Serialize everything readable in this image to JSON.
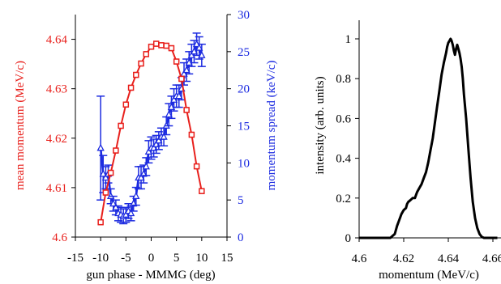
{
  "chart_data": [
    {
      "type": "line",
      "xlabel": "gun phase - MMMG (deg)",
      "ylabel": "mean momentum (MeV/c)",
      "y2label": "momentum spread (keV/c)",
      "xlim": [
        -15,
        15
      ],
      "ylim": [
        4.6,
        4.645
      ],
      "y2lim": [
        0,
        30
      ],
      "xticks": [
        "-15",
        "-10",
        "-5",
        "0",
        "5",
        "10",
        "15"
      ],
      "yticks": [
        "4.6",
        "4.61",
        "4.62",
        "4.63",
        "4.64"
      ],
      "y2ticks": [
        "0",
        "5",
        "10",
        "15",
        "20",
        "25",
        "30"
      ],
      "series": [
        {
          "axis": "left",
          "color": "#e8201c",
          "marker": "square",
          "x": [
            -10,
            -9,
            -8,
            -7,
            -6,
            -5,
            -4,
            -3,
            -2,
            -1,
            0,
            1,
            2,
            3,
            4,
            5,
            6,
            7,
            8,
            9,
            10
          ],
          "y": [
            4.603,
            4.609,
            4.613,
            4.6175,
            4.6225,
            4.6268,
            4.6302,
            4.6328,
            4.6351,
            4.637,
            4.6385,
            4.6391,
            4.6388,
            4.6387,
            4.6382,
            4.6355,
            4.632,
            4.6257,
            4.6207,
            4.6143,
            4.6093
          ],
          "yerr": [
            0.0005,
            0.0005,
            0.0005,
            0.0005,
            0.0005,
            0.0005,
            0.0005,
            0.0005,
            0.0005,
            0.0005,
            0.0005,
            0.0005,
            0.0005,
            0.0005,
            0.0005,
            0.0005,
            0.0005,
            0.0005,
            0.0005,
            0.0005,
            0.0005
          ]
        },
        {
          "axis": "right",
          "color": "#1c2be0",
          "marker": "triangle",
          "x": [
            -10,
            -9.5,
            -9,
            -8.5,
            -8,
            -7.5,
            -7,
            -6.5,
            -6,
            -5.5,
            -5,
            -4.5,
            -4,
            -3.5,
            -3,
            -2.5,
            -2,
            -1.5,
            -1,
            -0.5,
            0,
            0.5,
            1,
            1.5,
            2,
            2.5,
            3,
            3.5,
            4,
            4.5,
            5,
            5.5,
            6,
            6.5,
            7,
            7.5,
            8,
            8.5,
            9,
            9.5,
            10
          ],
          "y": [
            12.0,
            8.5,
            8.0,
            8.5,
            5.5,
            4.5,
            4.0,
            3.2,
            3.0,
            2.8,
            3.0,
            3.5,
            3.2,
            4.5,
            5.5,
            8.0,
            8.0,
            8.5,
            9.5,
            11.5,
            12.0,
            12.0,
            12.5,
            13.0,
            13.5,
            13.5,
            15.0,
            16.5,
            17.5,
            18.5,
            19.0,
            19.0,
            20.0,
            22.0,
            22.5,
            23.5,
            24.5,
            25.0,
            26.0,
            25.5,
            24.5
          ],
          "yerr": [
            7.0,
            2.5,
            1.5,
            1.2,
            1.0,
            1.0,
            1.0,
            1.0,
            1.0,
            1.0,
            1.0,
            1.0,
            1.0,
            1.0,
            1.2,
            1.5,
            1.5,
            1.2,
            1.2,
            1.5,
            1.5,
            1.2,
            1.2,
            1.2,
            1.2,
            1.2,
            1.2,
            1.5,
            1.5,
            1.5,
            1.5,
            1.5,
            1.5,
            1.5,
            1.5,
            1.5,
            1.5,
            1.5,
            1.5,
            1.5,
            1.5
          ]
        }
      ]
    },
    {
      "type": "line",
      "xlabel": "momentum (MeV/c)",
      "ylabel": "intensity (arb. units)",
      "xlim": [
        4.6,
        4.66
      ],
      "ylim": [
        0,
        1
      ],
      "xticks": [
        "4.6",
        "4.62",
        "4.64",
        "4.66"
      ],
      "yticks": [
        "0",
        "0.2",
        "0.4",
        "0.6",
        "0.8",
        "1"
      ],
      "series": [
        {
          "color": "#000000",
          "x": [
            4.6,
            4.605,
            4.61,
            4.614,
            4.616,
            4.617,
            4.618,
            4.619,
            4.62,
            4.621,
            4.6215,
            4.622,
            4.623,
            4.624,
            4.625,
            4.626,
            4.627,
            4.628,
            4.629,
            4.63,
            4.631,
            4.632,
            4.633,
            4.634,
            4.635,
            4.636,
            4.637,
            4.638,
            4.639,
            4.6395,
            4.64,
            4.6405,
            4.641,
            4.6415,
            4.642,
            4.6425,
            4.643,
            4.6435,
            4.644,
            4.6445,
            4.645,
            4.6455,
            4.646,
            4.6465,
            4.647,
            4.648,
            4.649,
            4.65,
            4.651,
            4.652,
            4.653,
            4.654,
            4.655,
            4.656,
            4.658,
            4.66,
            4.662
          ],
          "y": [
            0.0,
            0.0,
            0.0,
            0.0,
            0.02,
            0.06,
            0.09,
            0.12,
            0.14,
            0.15,
            0.17,
            0.18,
            0.19,
            0.2,
            0.2,
            0.23,
            0.25,
            0.27,
            0.3,
            0.33,
            0.38,
            0.44,
            0.5,
            0.58,
            0.66,
            0.74,
            0.82,
            0.88,
            0.93,
            0.96,
            0.98,
            0.99,
            1.0,
            0.99,
            0.97,
            0.94,
            0.92,
            0.95,
            0.97,
            0.95,
            0.93,
            0.9,
            0.86,
            0.8,
            0.72,
            0.6,
            0.45,
            0.3,
            0.18,
            0.1,
            0.05,
            0.02,
            0.005,
            0.0,
            0.0,
            0.0,
            0.0
          ]
        }
      ]
    }
  ]
}
